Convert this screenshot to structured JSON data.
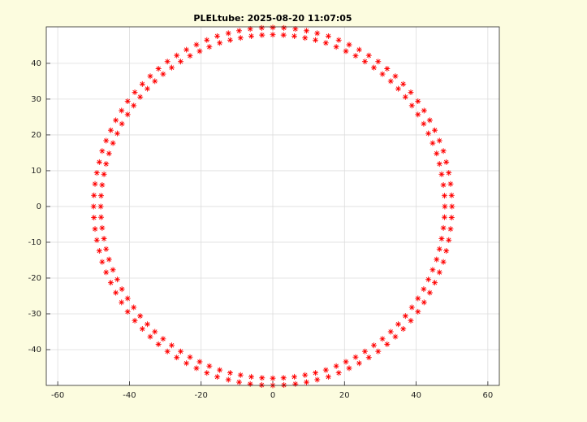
{
  "chart_data": {
    "type": "scatter",
    "title": "PLELtube: 2025-08-20 11:07:05",
    "xlim": [
      -63.2,
      63.2
    ],
    "ylim": [
      -50,
      50.2
    ],
    "xticks": [
      -60,
      -40,
      -20,
      0,
      20,
      40,
      60
    ],
    "yticks": [
      -40,
      -30,
      -20,
      -10,
      0,
      10,
      20,
      30,
      40
    ],
    "grid": true,
    "marker": "*",
    "series": [
      {
        "color": "#ff0000",
        "x": [
          50,
          49.9,
          49.6,
          49.1,
          48.4,
          47.6,
          46.5,
          45.2,
          43.8,
          42.2,
          40.5,
          38.5,
          36.4,
          34.2,
          31.9,
          29.4,
          26.8,
          24.1,
          21.3,
          18.4,
          15.5,
          12.4,
          9.4,
          6.3,
          3.1,
          0,
          -3.1,
          -6.3,
          -9.4,
          -12.4,
          -15.5,
          -18.4,
          -21.3,
          -24.1,
          -26.8,
          -29.4,
          -31.9,
          -34.2,
          -36.4,
          -38.5,
          -40.5,
          -42.2,
          -43.8,
          -45.2,
          -46.5,
          -47.6,
          -48.4,
          -49.1,
          -49.6,
          -49.9,
          -50,
          -49.9,
          -49.6,
          -49.1,
          -48.4,
          -47.6,
          -46.5,
          -45.2,
          -43.8,
          -42.2,
          -40.5,
          -38.5,
          -36.4,
          -34.2,
          -31.9,
          -29.4,
          -26.8,
          -24.1,
          -21.3,
          -18.4,
          -15.5,
          -12.4,
          -9.4,
          -6.3,
          -3.1,
          0,
          3.1,
          6.3,
          9.4,
          12.4,
          15.5,
          18.4,
          21.3,
          24.1,
          26.8,
          29.4,
          31.9,
          34.2,
          36.4,
          38.5,
          40.5,
          42.2,
          43.8,
          45.2,
          46.5,
          47.6,
          48.4,
          49.1,
          49.6,
          49.9
        ],
        "y": [
          0,
          3.1,
          6.3,
          9.4,
          12.4,
          15.5,
          18.4,
          21.3,
          24.1,
          26.8,
          29.4,
          31.9,
          34.2,
          36.4,
          38.5,
          40.5,
          42.2,
          43.8,
          45.2,
          46.5,
          47.6,
          48.4,
          49.1,
          49.6,
          49.9,
          50,
          49.9,
          49.6,
          49.1,
          48.4,
          47.6,
          46.5,
          45.2,
          43.8,
          42.2,
          40.5,
          38.5,
          36.4,
          34.2,
          31.9,
          29.4,
          26.8,
          24.1,
          21.3,
          18.4,
          15.5,
          12.4,
          9.4,
          6.3,
          3.1,
          0,
          -3.1,
          -6.3,
          -9.4,
          -12.4,
          -15.5,
          -18.4,
          -21.3,
          -24.1,
          -26.8,
          -29.4,
          -31.9,
          -34.2,
          -36.4,
          -38.5,
          -40.5,
          -42.2,
          -43.8,
          -45.2,
          -46.5,
          -47.6,
          -48.4,
          -49.1,
          -49.6,
          -49.9,
          -50,
          -49.9,
          -49.6,
          -49.1,
          -48.4,
          -47.6,
          -46.5,
          -45.2,
          -43.8,
          -42.2,
          -40.5,
          -38.5,
          -36.4,
          -34.2,
          -31.9,
          -29.4,
          -26.8,
          -24.1,
          -21.3,
          -18.4,
          -15.5,
          -12.4,
          -9.4,
          -6.3,
          -3.1
        ]
      },
      {
        "color": "#ff0000",
        "x": [
          48,
          47.9,
          47.6,
          47.1,
          46.5,
          45.7,
          44.6,
          43.4,
          42.1,
          40.5,
          38.8,
          37.0,
          35.0,
          32.9,
          30.6,
          28.2,
          25.7,
          23.1,
          20.4,
          17.7,
          14.8,
          11.9,
          9.0,
          6.0,
          3.0,
          0,
          -3.0,
          -6.0,
          -9.0,
          -11.9,
          -14.8,
          -17.7,
          -20.4,
          -23.1,
          -25.7,
          -28.2,
          -30.6,
          -32.9,
          -35.0,
          -37.0,
          -38.8,
          -40.5,
          -42.1,
          -43.4,
          -44.6,
          -45.7,
          -46.5,
          -47.1,
          -47.6,
          -47.9,
          -48,
          -47.9,
          -47.6,
          -47.1,
          -46.5,
          -45.7,
          -44.6,
          -43.4,
          -42.1,
          -40.5,
          -38.8,
          -37.0,
          -35.0,
          -32.9,
          -30.6,
          -28.2,
          -25.7,
          -23.1,
          -20.4,
          -17.7,
          -14.8,
          -11.9,
          -9.0,
          -6.0,
          -3.0,
          0,
          3.0,
          6.0,
          9.0,
          11.9,
          14.8,
          17.7,
          20.4,
          23.1,
          25.7,
          28.2,
          30.6,
          32.9,
          35.0,
          37.0,
          38.8,
          40.5,
          42.1,
          43.4,
          44.6,
          45.7,
          46.5,
          47.1,
          47.6,
          47.9
        ],
        "y": [
          0,
          3.0,
          6.0,
          9.0,
          11.9,
          14.8,
          17.7,
          20.4,
          23.1,
          25.7,
          28.2,
          30.6,
          32.9,
          35.0,
          37.0,
          38.8,
          40.5,
          42.1,
          43.4,
          44.6,
          45.7,
          46.5,
          47.1,
          47.6,
          47.9,
          48,
          47.9,
          47.6,
          47.1,
          46.5,
          45.7,
          44.6,
          43.4,
          42.1,
          40.5,
          38.8,
          37.0,
          35.0,
          32.9,
          30.6,
          28.2,
          25.7,
          23.1,
          20.4,
          17.7,
          14.8,
          11.9,
          9.0,
          6.0,
          3.0,
          0,
          -3.0,
          -6.0,
          -9.0,
          -11.9,
          -14.8,
          -17.7,
          -20.4,
          -23.1,
          -25.7,
          -28.2,
          -30.6,
          -32.9,
          -35.0,
          -37.0,
          -38.8,
          -40.5,
          -42.1,
          -43.4,
          -44.6,
          -45.7,
          -46.5,
          -47.1,
          -47.6,
          -47.9,
          -48,
          -47.9,
          -47.6,
          -47.1,
          -46.5,
          -45.7,
          -44.6,
          -43.4,
          -42.1,
          -40.5,
          -38.8,
          -37.0,
          -35.0,
          -32.9,
          -30.6,
          -28.2,
          -25.7,
          -23.1,
          -20.4,
          -17.7,
          -14.8,
          -11.9,
          -9.0,
          -6.0,
          -3.0
        ]
      }
    ]
  }
}
